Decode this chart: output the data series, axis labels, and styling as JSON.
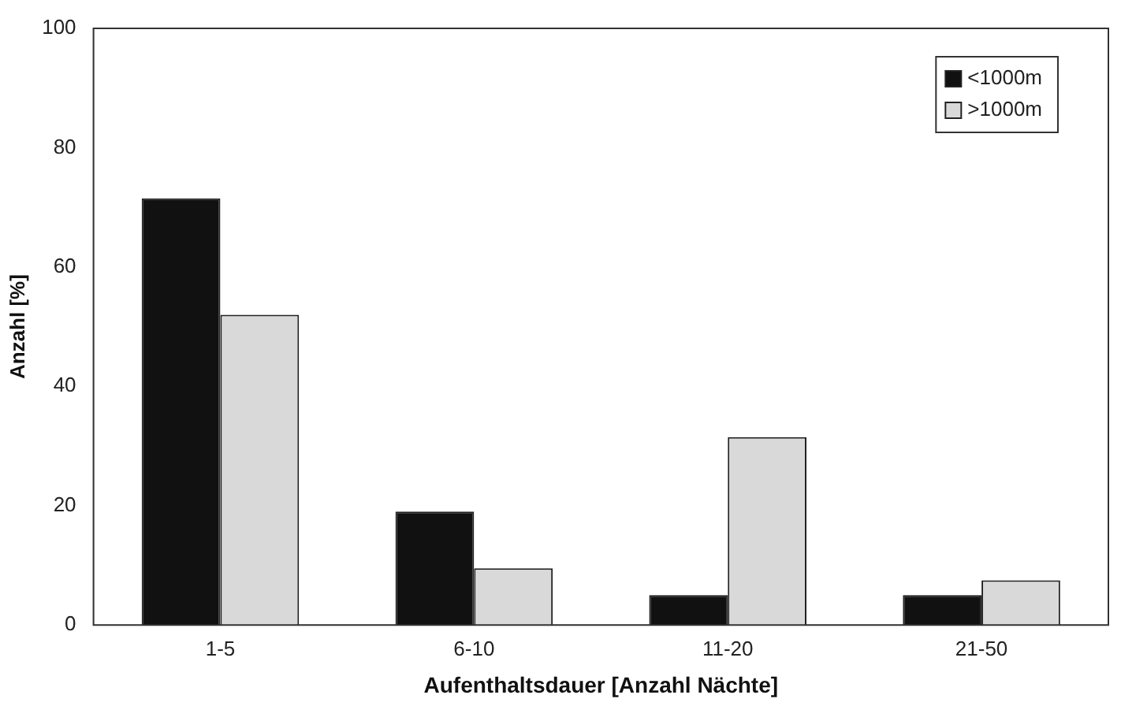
{
  "chart_data": {
    "type": "bar",
    "xlabel": "Aufenthaltsdauer [Anzahl Nächte]",
    "ylabel": "Anzahl [%]",
    "categories": [
      "1-5",
      "6-10",
      "11-20",
      "21-50"
    ],
    "series": [
      {
        "name": "<1000m",
        "color": "#111111",
        "values": [
          71.5,
          19,
          5,
          5
        ]
      },
      {
        "name": ">1000m",
        "color": "#d9d9d9",
        "values": [
          52,
          9.5,
          31.5,
          7.5
        ]
      }
    ],
    "ylim": [
      0,
      100
    ],
    "yticks": [
      0,
      20,
      40,
      60,
      80,
      100
    ],
    "grid": false,
    "legend": "top right"
  }
}
